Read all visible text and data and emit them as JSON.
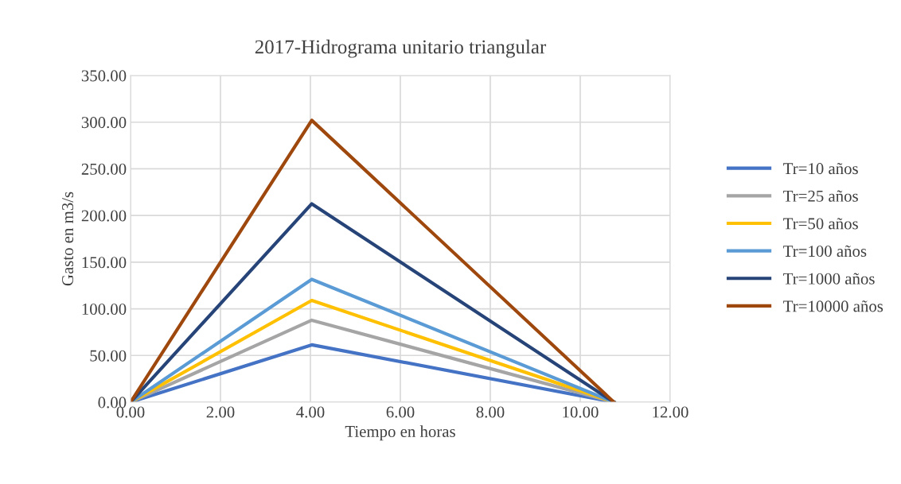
{
  "chart_data": {
    "type": "line",
    "title": "2017-Hidrograma unitario triangular",
    "xlabel": "Tiempo en horas",
    "ylabel": "Gasto en m3/s",
    "x": [
      0,
      4.03,
      10.75
    ],
    "series": [
      {
        "name": "Tr=10 años",
        "color": "#4472c4",
        "values": [
          0,
          61.4,
          0
        ]
      },
      {
        "name": "Tr=25 años",
        "color": "#a5a5a5",
        "values": [
          0,
          87.8,
          0
        ]
      },
      {
        "name": "Tr=50 años",
        "color": "#ffc000",
        "values": [
          0,
          109,
          0
        ]
      },
      {
        "name": "Tr=100 años",
        "color": "#5b9bd5",
        "values": [
          0,
          131.6,
          0
        ]
      },
      {
        "name": "Tr=1000 años",
        "color": "#264478",
        "values": [
          0,
          212.5,
          0
        ]
      },
      {
        "name": "Tr=10000 años",
        "color": "#9e480e",
        "values": [
          0,
          302,
          0
        ]
      }
    ],
    "xlim": [
      0,
      12
    ],
    "ylim": [
      0,
      350
    ],
    "xticks": [
      {
        "value": 0,
        "label": "0.00"
      },
      {
        "value": 2,
        "label": "2.00"
      },
      {
        "value": 4,
        "label": "4.00"
      },
      {
        "value": 6,
        "label": "6.00"
      },
      {
        "value": 8,
        "label": "8.00"
      },
      {
        "value": 10,
        "label": "10.00"
      },
      {
        "value": 12,
        "label": "12.00"
      }
    ],
    "yticks": [
      {
        "value": 0,
        "label": "0.00"
      },
      {
        "value": 50,
        "label": "50.00"
      },
      {
        "value": 100,
        "label": "100.00"
      },
      {
        "value": 150,
        "label": "150.00"
      },
      {
        "value": 200,
        "label": "200.00"
      },
      {
        "value": 250,
        "label": "250.00"
      },
      {
        "value": 300,
        "label": "300.00"
      },
      {
        "value": 350,
        "label": "350.00"
      }
    ],
    "grid": true,
    "legend": "right",
    "marker": "none",
    "line_style": "solid"
  }
}
